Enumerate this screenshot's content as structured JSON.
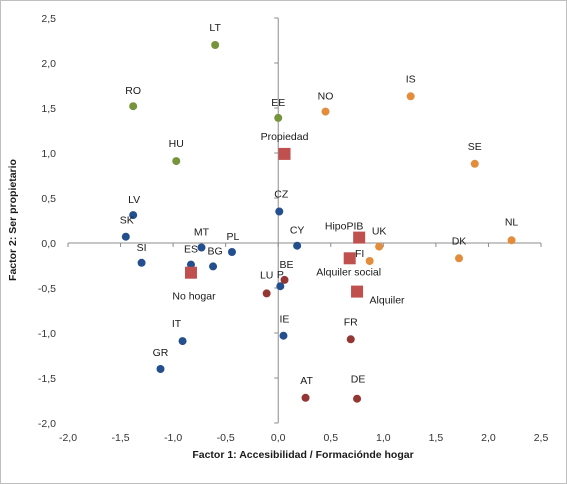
{
  "chart_data": {
    "type": "scatter",
    "title": "",
    "xlabel": "Factor 1: Accesibilidad / Formaciónde hogar",
    "ylabel": "Factor 2: Ser propietario",
    "xlim": [
      -2.0,
      2.5
    ],
    "ylim": [
      -2.0,
      2.5
    ],
    "xticks": [
      "-2,0",
      "-1,5",
      "-1,0",
      "-0,5",
      "0,0",
      "0,5",
      "1,0",
      "1,5",
      "2,0",
      "2,5"
    ],
    "yticks": [
      "2,5",
      "2,0",
      "1,5",
      "1,0",
      "0,5",
      "0,0",
      "-0,5",
      "-1,0",
      "-1,5",
      "-2,0"
    ],
    "grid": false,
    "series": [
      {
        "color": "#77933c",
        "marker": "circle",
        "points": [
          {
            "label": "LT",
            "x": -0.6,
            "y": 2.2
          },
          {
            "label": "RO",
            "x": -1.38,
            "y": 1.52
          },
          {
            "label": "EE",
            "x": 0.0,
            "y": 1.39
          },
          {
            "label": "HU",
            "x": -0.97,
            "y": 0.91
          }
        ]
      },
      {
        "color": "#e38d3c",
        "marker": "circle",
        "points": [
          {
            "label": "IS",
            "x": 1.26,
            "y": 1.63
          },
          {
            "label": "NO",
            "x": 0.45,
            "y": 1.46
          },
          {
            "label": "SE",
            "x": 1.87,
            "y": 0.88
          },
          {
            "label": "NL",
            "x": 2.22,
            "y": 0.03
          },
          {
            "label": "DK",
            "x": 1.72,
            "y": -0.17
          },
          {
            "label": "UK",
            "x": 0.96,
            "y": -0.04
          },
          {
            "label": "FI",
            "x": 0.87,
            "y": -0.2
          }
        ]
      },
      {
        "color": "#244f8e",
        "marker": "circle",
        "points": [
          {
            "label": "LV",
            "x": -1.38,
            "y": 0.31
          },
          {
            "label": "SK",
            "x": -1.45,
            "y": 0.07
          },
          {
            "label": "SI",
            "x": -1.3,
            "y": -0.22
          },
          {
            "label": "CZ",
            "x": 0.01,
            "y": 0.35
          },
          {
            "label": "CY",
            "x": 0.18,
            "y": -0.03
          },
          {
            "label": "MT",
            "x": -0.73,
            "y": -0.05
          },
          {
            "label": "ES",
            "x": -0.83,
            "y": -0.24
          },
          {
            "label": "BG",
            "x": -0.62,
            "y": -0.26
          },
          {
            "label": "PL",
            "x": -0.44,
            "y": -0.1
          },
          {
            "label": "P",
            "x": 0.02,
            "y": -0.48
          },
          {
            "label": "IE",
            "x": 0.05,
            "y": -1.03
          },
          {
            "label": "IT",
            "x": -0.91,
            "y": -1.09
          },
          {
            "label": "GR",
            "x": -1.12,
            "y": -1.4
          }
        ]
      },
      {
        "color": "#943634",
        "marker": "circle",
        "points": [
          {
            "label": "BE",
            "x": 0.06,
            "y": -0.41
          },
          {
            "label": "LU",
            "x": -0.11,
            "y": -0.56
          },
          {
            "label": "FR",
            "x": 0.69,
            "y": -1.07
          },
          {
            "label": "AT",
            "x": 0.26,
            "y": -1.72
          },
          {
            "label": "DE",
            "x": 0.75,
            "y": -1.73
          }
        ]
      },
      {
        "color": "#c0504d",
        "marker": "square",
        "points": [
          {
            "label": "Propiedad",
            "x": 0.06,
            "y": 0.99
          },
          {
            "label": "HipoPIB",
            "x": 0.77,
            "y": 0.06
          },
          {
            "label": "Alquiler social",
            "x": 0.68,
            "y": -0.17
          },
          {
            "label": "Alquiler",
            "x": 0.75,
            "y": -0.54
          },
          {
            "label": "No hogar",
            "x": -0.83,
            "y": -0.33
          }
        ]
      }
    ]
  }
}
